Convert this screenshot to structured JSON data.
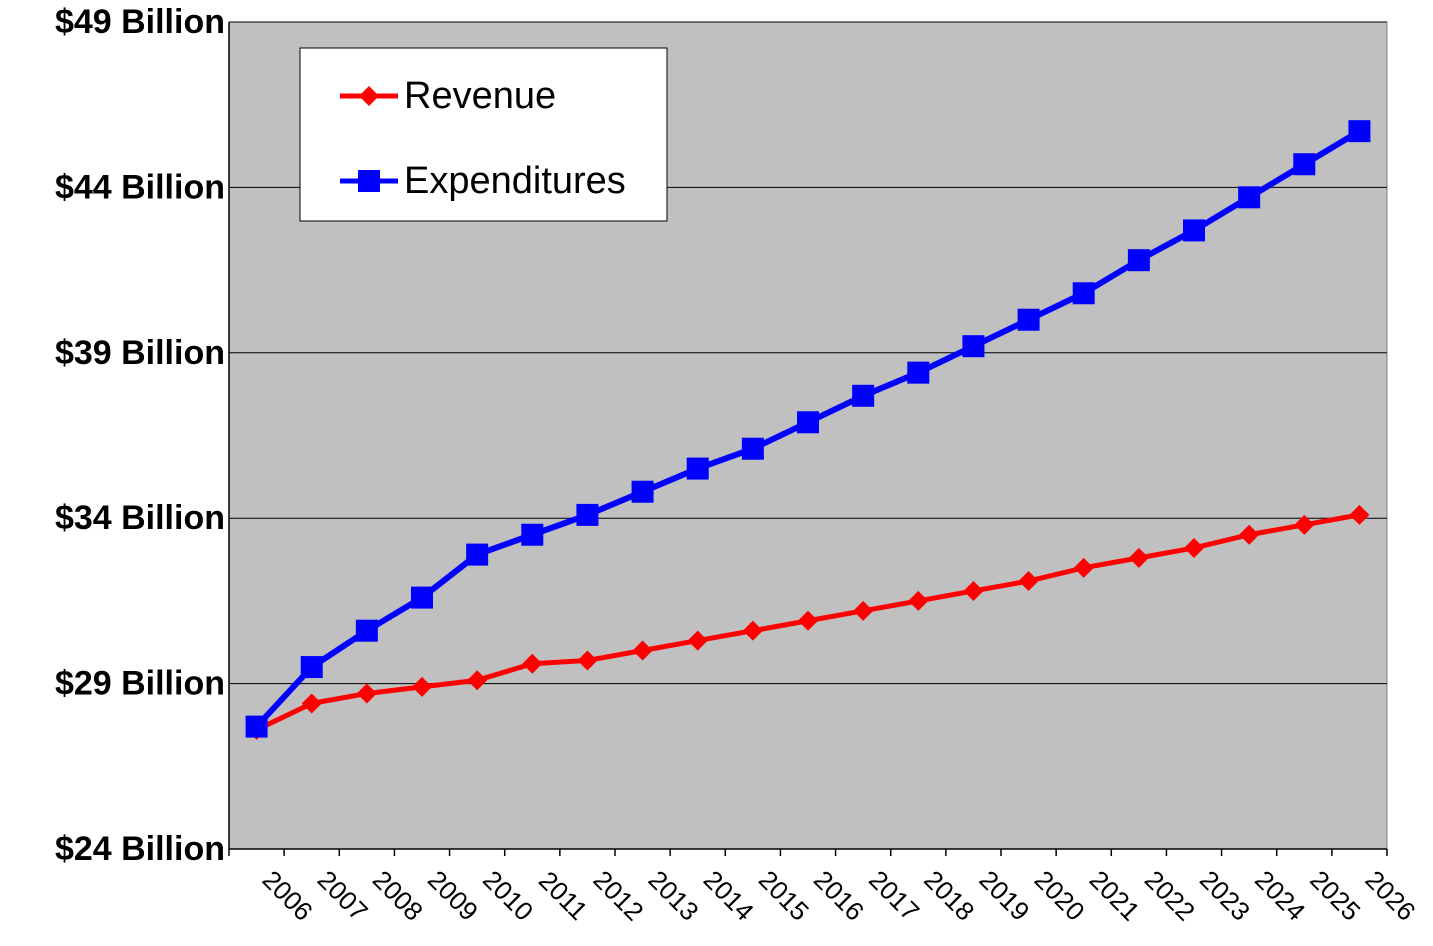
{
  "chart_data": {
    "type": "line",
    "categories": [
      "2006",
      "2007",
      "2008",
      "2009",
      "2010",
      "2011",
      "2012",
      "2013",
      "2014",
      "2015",
      "2016",
      "2017",
      "2018",
      "2019",
      "2020",
      "2021",
      "2022",
      "2023",
      "2024",
      "2025",
      "2026"
    ],
    "series": [
      {
        "name": "Revenue",
        "color": "#ff0000",
        "marker": "diamond",
        "values": [
          27.6,
          28.4,
          28.7,
          28.9,
          29.1,
          29.6,
          29.7,
          30.0,
          30.3,
          30.6,
          30.9,
          31.2,
          31.5,
          31.8,
          32.1,
          32.5,
          32.8,
          33.1,
          33.5,
          33.8,
          34.1
        ]
      },
      {
        "name": "Expenditures",
        "color": "#0000ff",
        "marker": "square",
        "values": [
          27.7,
          29.5,
          30.6,
          31.6,
          32.9,
          33.5,
          34.1,
          34.8,
          35.5,
          36.1,
          36.9,
          37.7,
          38.4,
          39.2,
          40.0,
          40.8,
          41.8,
          42.7,
          43.7,
          44.7,
          45.7
        ]
      }
    ],
    "ylim": [
      24,
      49
    ],
    "yticks": [
      {
        "value": 24,
        "label": "$24 Billion"
      },
      {
        "value": 29,
        "label": "$29 Billion"
      },
      {
        "value": 34,
        "label": "$34 Billion"
      },
      {
        "value": 39,
        "label": "$39 Billion"
      },
      {
        "value": 44,
        "label": "$44 Billion"
      },
      {
        "value": 49,
        "label": "$49 Billion"
      }
    ],
    "grid": true,
    "legend": "upper-left",
    "plot_background": "#c0c0c0"
  }
}
